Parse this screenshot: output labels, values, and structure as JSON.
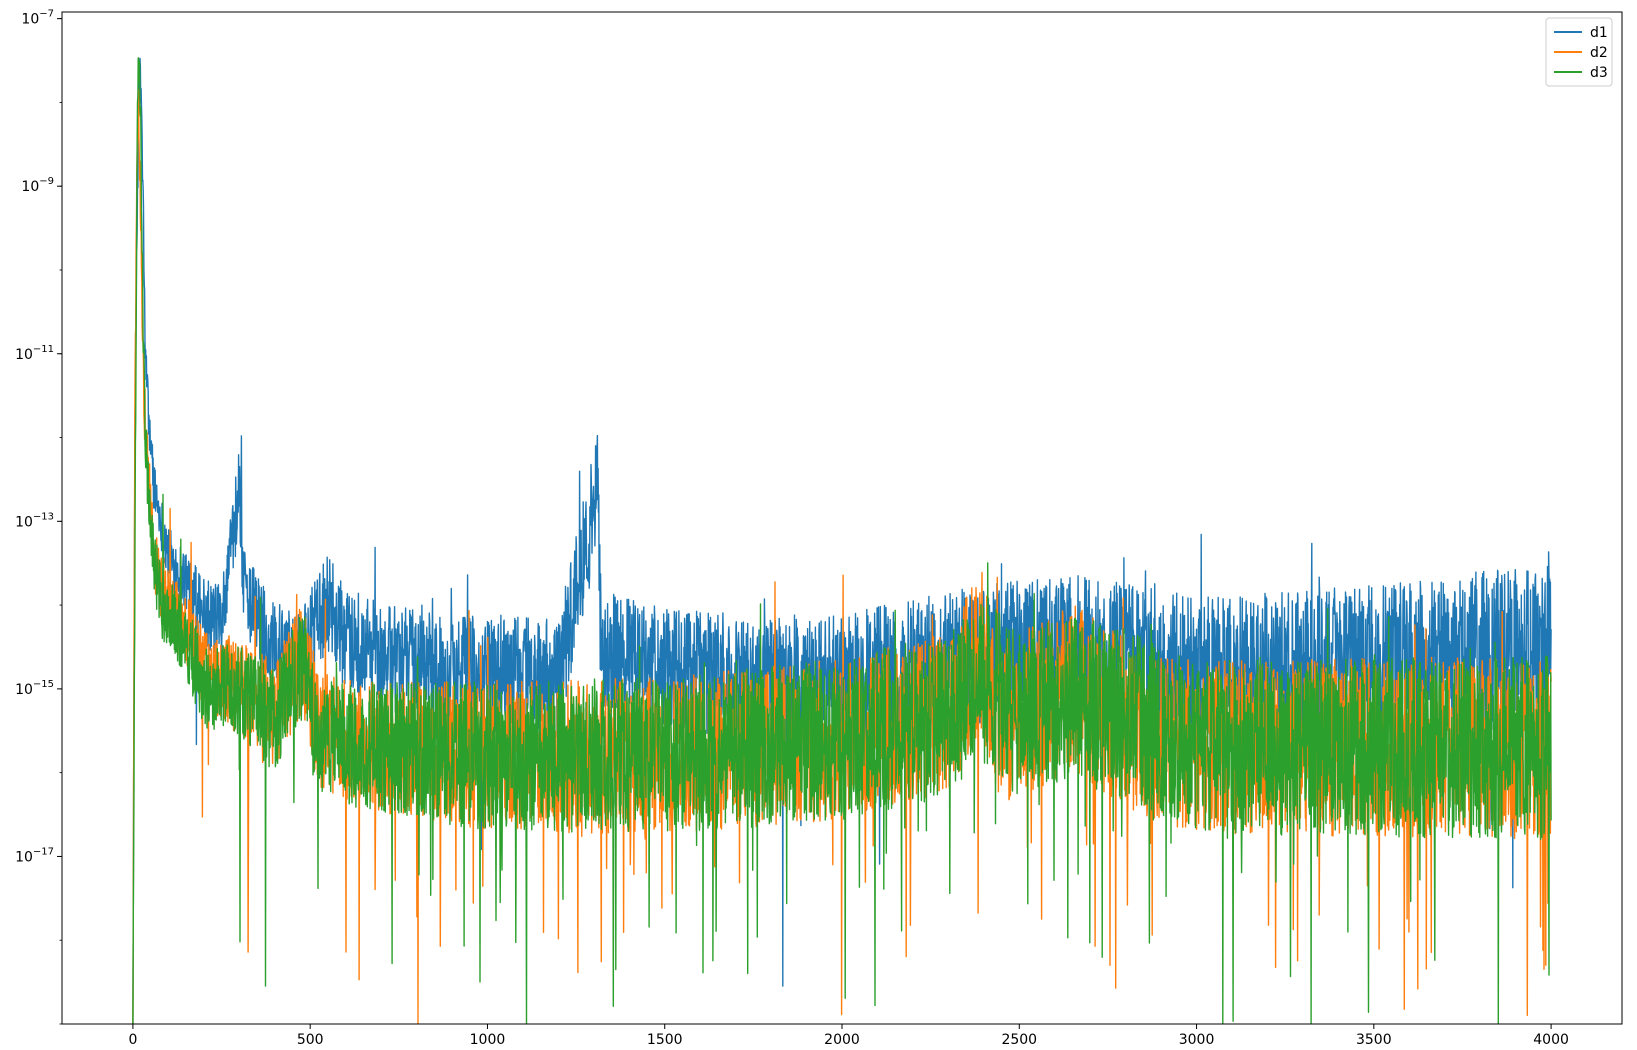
{
  "chart_data": {
    "type": "line",
    "title": "",
    "xlabel": "",
    "ylabel": "",
    "yscale": "log",
    "xlim": [
      -200,
      4200
    ],
    "ylim": [
      1e-19,
      1.2e-07
    ],
    "xticks": [
      0,
      500,
      1000,
      1500,
      2000,
      2500,
      3000,
      3500,
      4000
    ],
    "yticks": [
      {
        "base": "10",
        "exp": "−7",
        "value": 1e-07
      },
      {
        "base": "10",
        "exp": "−9",
        "value": 1e-09
      },
      {
        "base": "10",
        "exp": "−11",
        "value": 1e-11
      },
      {
        "base": "10",
        "exp": "−13",
        "value": 1e-13
      },
      {
        "base": "10",
        "exp": "−15",
        "value": 1e-15
      },
      {
        "base": "10",
        "exp": "−17",
        "value": 1e-17
      }
    ],
    "grid": false,
    "legend": "top-right",
    "x_range": [
      0,
      4000
    ],
    "series": [
      {
        "name": "d1",
        "color": "#1f77b4",
        "log10_values": [
          [
            0,
            -19
          ],
          [
            5,
            -12.5
          ],
          [
            10,
            -10
          ],
          [
            15,
            -8.5
          ],
          [
            20,
            -7.5
          ],
          [
            25,
            -8.3
          ],
          [
            30,
            -9.5
          ],
          [
            35,
            -11
          ],
          [
            45,
            -11.8
          ],
          [
            60,
            -12.6
          ],
          [
            80,
            -13
          ],
          [
            100,
            -13.4
          ],
          [
            150,
            -13.7
          ],
          [
            200,
            -14.1
          ],
          [
            250,
            -14.2
          ],
          [
            300,
            -12.6
          ],
          [
            310,
            -13.8
          ],
          [
            400,
            -14.5
          ],
          [
            480,
            -14.6
          ],
          [
            550,
            -14.0
          ],
          [
            600,
            -14.4
          ],
          [
            700,
            -14.6
          ],
          [
            800,
            -14.7
          ],
          [
            1000,
            -14.8
          ],
          [
            1200,
            -14.9
          ],
          [
            1310,
            -12.6
          ],
          [
            1320,
            -14.5
          ],
          [
            1500,
            -14.8
          ],
          [
            1800,
            -14.9
          ],
          [
            2000,
            -14.9
          ],
          [
            2400,
            -14.6
          ],
          [
            2650,
            -14.5
          ],
          [
            3000,
            -14.8
          ],
          [
            3500,
            -14.7
          ],
          [
            4000,
            -14.5
          ]
        ],
        "amplitude": [
          [
            0,
            0.25
          ],
          [
            100,
            0.35
          ],
          [
            500,
            0.6
          ],
          [
            1000,
            0.7
          ],
          [
            1500,
            0.75
          ],
          [
            2000,
            0.8
          ],
          [
            2500,
            0.85
          ],
          [
            3000,
            0.9
          ],
          [
            4000,
            1.0
          ]
        ]
      },
      {
        "name": "d2",
        "color": "#ff7f0e",
        "log10_values": [
          [
            0,
            -19
          ],
          [
            5,
            -12
          ],
          [
            10,
            -9.5
          ],
          [
            15,
            -8.0
          ],
          [
            20,
            -8.8
          ],
          [
            25,
            -10
          ],
          [
            30,
            -11.5
          ],
          [
            45,
            -12.5
          ],
          [
            60,
            -13.5
          ],
          [
            100,
            -14.0
          ],
          [
            150,
            -14.3
          ],
          [
            200,
            -14.8
          ],
          [
            300,
            -15.0
          ],
          [
            400,
            -15.3
          ],
          [
            480,
            -14.6
          ],
          [
            520,
            -15.5
          ],
          [
            700,
            -15.7
          ],
          [
            1000,
            -15.8
          ],
          [
            1500,
            -15.8
          ],
          [
            2000,
            -15.6
          ],
          [
            2300,
            -15.3
          ],
          [
            2390,
            -14.5
          ],
          [
            2450,
            -15.4
          ],
          [
            2650,
            -15.0
          ],
          [
            2800,
            -15.4
          ],
          [
            3000,
            -15.7
          ],
          [
            3500,
            -15.7
          ],
          [
            4000,
            -15.7
          ]
        ],
        "amplitude": [
          [
            0,
            0.35
          ],
          [
            500,
            0.7
          ],
          [
            1000,
            0.9
          ],
          [
            4000,
            1.1
          ]
        ]
      },
      {
        "name": "d3",
        "color": "#2ca02c",
        "log10_values": [
          [
            0,
            -19
          ],
          [
            4,
            -15
          ],
          [
            8,
            -11.5
          ],
          [
            12,
            -8.5
          ],
          [
            16,
            -7.4
          ],
          [
            22,
            -8.2
          ],
          [
            28,
            -10.5
          ],
          [
            35,
            -12
          ],
          [
            50,
            -13.2
          ],
          [
            80,
            -14.0
          ],
          [
            150,
            -14.4
          ],
          [
            200,
            -15.0
          ],
          [
            300,
            -15.0
          ],
          [
            400,
            -15.4
          ],
          [
            480,
            -14.7
          ],
          [
            520,
            -15.6
          ],
          [
            700,
            -15.7
          ],
          [
            1000,
            -15.8
          ],
          [
            1500,
            -15.8
          ],
          [
            2000,
            -15.6
          ],
          [
            2300,
            -15.3
          ],
          [
            2400,
            -14.9
          ],
          [
            2500,
            -15.3
          ],
          [
            2700,
            -15.1
          ],
          [
            2900,
            -15.5
          ],
          [
            3000,
            -15.7
          ],
          [
            3500,
            -15.7
          ],
          [
            4000,
            -15.7
          ]
        ],
        "amplitude": [
          [
            0,
            0.35
          ],
          [
            500,
            0.7
          ],
          [
            1000,
            0.9
          ],
          [
            4000,
            1.1
          ]
        ]
      }
    ]
  }
}
